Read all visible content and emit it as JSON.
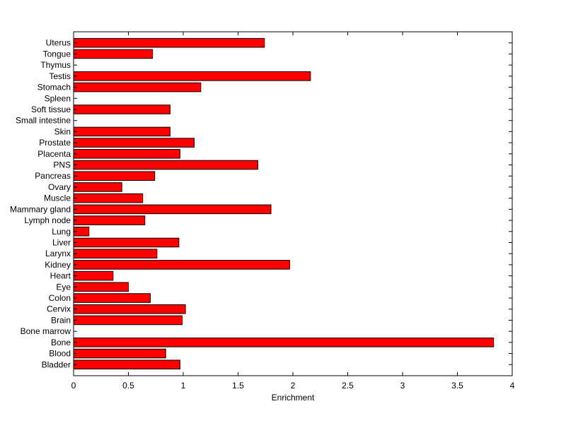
{
  "chart_data": {
    "type": "bar",
    "orientation": "horizontal",
    "title": "",
    "xlabel": "Enrichment",
    "ylabel": "",
    "xlim": [
      0,
      4
    ],
    "xticks": [
      "0",
      "0.5",
      "1",
      "1.5",
      "2",
      "2.5",
      "3",
      "3.5",
      "4"
    ],
    "grid": false,
    "legend": "none",
    "bar_color": "#ff0000",
    "categories": [
      "Bladder",
      "Blood",
      "Bone",
      "Bone marrow",
      "Brain",
      "Cervix",
      "Colon",
      "Eye",
      "Heart",
      "Kidney",
      "Larynx",
      "Liver",
      "Lung",
      "Lymph node",
      "Mammary gland",
      "Muscle",
      "Ovary",
      "Pancreas",
      "PNS",
      "Placenta",
      "Prostate",
      "Skin",
      "Small intestine",
      "Soft tissue",
      "Spleen",
      "Stomach",
      "Testis",
      "Thymus",
      "Tongue",
      "Uterus"
    ],
    "values": [
      0.97,
      0.84,
      3.83,
      0,
      0.99,
      1.02,
      0.7,
      0.5,
      0.36,
      1.97,
      0.76,
      0.96,
      0.14,
      0.65,
      1.8,
      0.63,
      0.44,
      0.74,
      1.68,
      0.97,
      1.1,
      0.88,
      0,
      0.88,
      0,
      1.16,
      2.16,
      0,
      0.72,
      1.74
    ]
  }
}
